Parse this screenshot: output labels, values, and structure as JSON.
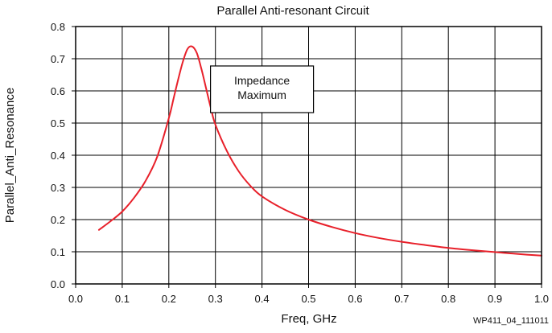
{
  "chart_data": {
    "type": "line",
    "title": "Parallel Anti-resonant Circuit",
    "xlabel": "Freq, GHz",
    "ylabel": "Parallel_Anti_Resonance",
    "xlim": [
      0.0,
      1.0
    ],
    "ylim": [
      0.0,
      0.8
    ],
    "grid": true,
    "x_ticks": [
      0.0,
      0.1,
      0.2,
      0.3,
      0.4,
      0.5,
      0.6,
      0.7,
      0.8,
      0.9,
      1.0
    ],
    "x_tick_labels": [
      "0.0",
      "0.1",
      "0.2",
      "0.3",
      "0.4",
      "0.5",
      "0.6",
      "0.7",
      "0.8",
      "0.9",
      "1.0"
    ],
    "y_ticks": [
      0.0,
      0.1,
      0.2,
      0.3,
      0.4,
      0.5,
      0.6,
      0.7,
      0.8
    ],
    "y_tick_labels": [
      "0.0",
      "0.1",
      "0.2",
      "0.3",
      "0.4",
      "0.5",
      "0.6",
      "0.7",
      "0.8"
    ],
    "series": [
      {
        "name": "Parallel_Anti_Resonance",
        "color": "#e8202a",
        "x": [
          0.05,
          0.075,
          0.1,
          0.125,
          0.15,
          0.175,
          0.2,
          0.21,
          0.22,
          0.23,
          0.24,
          0.25,
          0.26,
          0.27,
          0.28,
          0.29,
          0.3,
          0.325,
          0.35,
          0.375,
          0.4,
          0.45,
          0.5,
          0.55,
          0.6,
          0.65,
          0.7,
          0.75,
          0.8,
          0.85,
          0.9,
          0.95,
          1.0
        ],
        "y": [
          0.168,
          0.195,
          0.225,
          0.267,
          0.32,
          0.395,
          0.515,
          0.575,
          0.635,
          0.69,
          0.73,
          0.738,
          0.718,
          0.668,
          0.608,
          0.548,
          0.495,
          0.412,
          0.35,
          0.305,
          0.272,
          0.23,
          0.2,
          0.177,
          0.158,
          0.143,
          0.131,
          0.121,
          0.112,
          0.105,
          0.099,
          0.093,
          0.088
        ]
      }
    ],
    "annotations": [
      {
        "text": "Impedance Maximum",
        "lines": [
          "Impedance",
          "Maximum"
        ],
        "x": 0.4,
        "y": 0.6,
        "boxed": true
      }
    ],
    "figure_id": "WP411_04_111011"
  }
}
